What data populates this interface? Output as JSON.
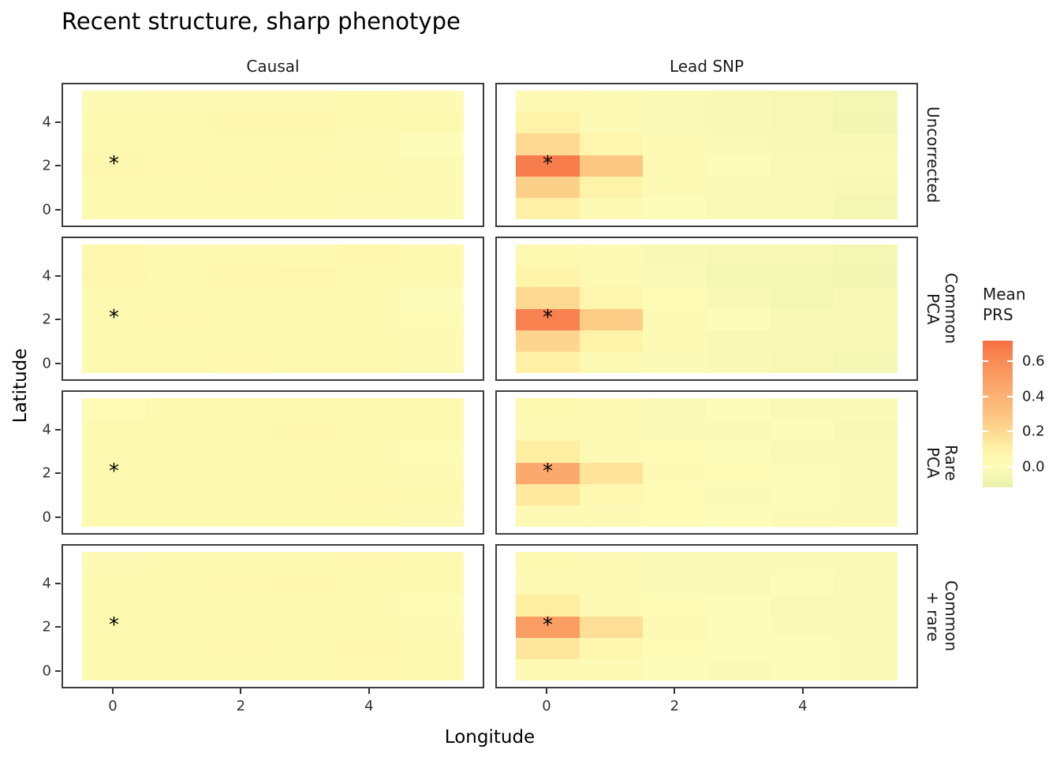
{
  "chart_data": {
    "type": "heatmap",
    "title": "Recent structure, sharp phenotype",
    "xlabel": "Longitude",
    "ylabel": "Latitude",
    "x_ticks": [
      0,
      2,
      4
    ],
    "y_ticks": [
      0,
      2,
      4
    ],
    "x_cells": [
      0,
      1,
      2,
      3,
      4,
      5
    ],
    "y_cells_top_to_bottom": [
      5,
      4,
      3,
      2,
      1,
      0
    ],
    "facet_cols": [
      "Causal",
      "Lead SNP"
    ],
    "facet_rows": [
      {
        "label": "Uncorrected",
        "lines": [
          "Uncorrected"
        ]
      },
      {
        "label": "Common PCA",
        "lines": [
          "Common",
          "PCA"
        ]
      },
      {
        "label": "Rare PCA",
        "lines": [
          "Rare",
          "PCA"
        ]
      },
      {
        "label": "Common + rare",
        "lines": [
          "Common",
          "+ rare"
        ]
      }
    ],
    "legend": {
      "title_lines": [
        "Mean",
        "PRS"
      ],
      "ticks": [
        0.6,
        0.4,
        0.2,
        0.0
      ],
      "domain": [
        -0.116,
        0.716
      ],
      "position": "right"
    },
    "palette_stops": [
      [
        -0.116,
        "#E9F0AC"
      ],
      [
        0.0,
        "#FDFCB8"
      ],
      [
        0.06,
        "#FEF7AE"
      ],
      [
        0.12,
        "#FEEEA2"
      ],
      [
        0.2,
        "#FDD992"
      ],
      [
        0.3,
        "#FCC37F"
      ],
      [
        0.4,
        "#FCB275"
      ],
      [
        0.5,
        "#FA9F64"
      ],
      [
        0.6,
        "#F98B57"
      ],
      [
        0.716,
        "#F76F42"
      ]
    ],
    "star_marker": {
      "symbol": "*",
      "lon": 0,
      "lat": 2,
      "in_every_panel": true
    },
    "grid": false,
    "panels": [
      {
        "facet_row": "Uncorrected",
        "facet_col": "Causal",
        "values_top_to_bottom": [
          [
            0.02,
            0.03,
            0.03,
            0.03,
            0.04,
            0.03
          ],
          [
            0.04,
            0.04,
            0.06,
            0.06,
            0.04,
            0.04
          ],
          [
            0.04,
            0.04,
            0.04,
            0.04,
            0.03,
            0.0
          ],
          [
            0.06,
            0.05,
            0.04,
            0.05,
            0.04,
            0.02
          ],
          [
            0.04,
            0.04,
            0.05,
            0.04,
            0.04,
            0.03
          ],
          [
            0.04,
            0.04,
            0.04,
            0.04,
            0.03,
            0.02
          ]
        ]
      },
      {
        "facet_row": "Uncorrected",
        "facet_col": "Lead SNP",
        "values_top_to_bottom": [
          [
            0.03,
            0.02,
            -0.02,
            -0.03,
            -0.04,
            -0.05
          ],
          [
            0.09,
            0.02,
            -0.02,
            -0.03,
            -0.04,
            -0.06
          ],
          [
            0.2,
            0.07,
            0.02,
            -0.02,
            -0.03,
            -0.03
          ],
          [
            0.66,
            0.28,
            0.03,
            0.0,
            -0.02,
            -0.02
          ],
          [
            0.24,
            0.09,
            0.02,
            -0.02,
            -0.02,
            -0.04
          ],
          [
            0.1,
            0.03,
            0.0,
            -0.02,
            -0.02,
            -0.05
          ]
        ]
      },
      {
        "facet_row": "Common PCA",
        "facet_col": "Causal",
        "values_top_to_bottom": [
          [
            0.06,
            0.04,
            0.04,
            0.04,
            0.06,
            0.04
          ],
          [
            0.07,
            0.04,
            0.06,
            0.07,
            0.04,
            0.04
          ],
          [
            0.04,
            0.04,
            0.04,
            0.04,
            0.04,
            0.0
          ],
          [
            0.04,
            0.05,
            0.04,
            0.04,
            0.04,
            0.01
          ],
          [
            0.04,
            0.04,
            0.04,
            0.04,
            0.04,
            0.03
          ],
          [
            0.04,
            0.04,
            0.05,
            0.04,
            0.04,
            0.03
          ]
        ]
      },
      {
        "facet_row": "Common PCA",
        "facet_col": "Lead SNP",
        "values_top_to_bottom": [
          [
            0.04,
            0.02,
            -0.03,
            -0.04,
            -0.04,
            -0.05
          ],
          [
            0.08,
            0.03,
            -0.02,
            -0.05,
            -0.05,
            -0.06
          ],
          [
            0.2,
            0.07,
            0.01,
            -0.03,
            -0.05,
            -0.04
          ],
          [
            0.64,
            0.26,
            0.02,
            0.0,
            -0.03,
            -0.03
          ],
          [
            0.22,
            0.09,
            0.02,
            -0.03,
            -0.03,
            -0.04
          ],
          [
            0.1,
            0.03,
            -0.01,
            -0.03,
            -0.04,
            -0.05
          ]
        ]
      },
      {
        "facet_row": "Rare PCA",
        "facet_col": "Causal",
        "values_top_to_bottom": [
          [
            0.01,
            0.04,
            0.04,
            0.04,
            0.04,
            0.04
          ],
          [
            0.04,
            0.04,
            0.04,
            0.06,
            0.04,
            0.04
          ],
          [
            0.04,
            0.04,
            0.04,
            0.04,
            0.04,
            0.01
          ],
          [
            0.04,
            0.04,
            0.04,
            0.04,
            0.04,
            0.03
          ],
          [
            0.04,
            0.04,
            0.04,
            0.04,
            0.05,
            0.04
          ],
          [
            0.04,
            0.04,
            0.04,
            0.04,
            0.04,
            0.03
          ]
        ]
      },
      {
        "facet_row": "Rare PCA",
        "facet_col": "Lead SNP",
        "values_top_to_bottom": [
          [
            0.04,
            0.02,
            -0.02,
            0.0,
            -0.02,
            -0.01
          ],
          [
            0.03,
            0.02,
            -0.01,
            -0.01,
            0.0,
            -0.03
          ],
          [
            0.12,
            0.03,
            0.01,
            0.0,
            -0.02,
            -0.02
          ],
          [
            0.45,
            0.16,
            0.02,
            0.01,
            0.0,
            -0.01
          ],
          [
            0.14,
            0.05,
            0.01,
            -0.01,
            0.0,
            -0.01
          ],
          [
            0.03,
            0.02,
            0.01,
            0.0,
            -0.01,
            -0.02
          ]
        ]
      },
      {
        "facet_row": "Common + rare",
        "facet_col": "Causal",
        "values_top_to_bottom": [
          [
            0.02,
            0.04,
            0.04,
            0.04,
            0.05,
            0.04
          ],
          [
            0.04,
            0.04,
            0.05,
            0.06,
            0.04,
            0.04
          ],
          [
            0.04,
            0.04,
            0.04,
            0.04,
            0.04,
            0.01
          ],
          [
            0.04,
            0.04,
            0.04,
            0.04,
            0.04,
            0.03
          ],
          [
            0.04,
            0.04,
            0.05,
            0.04,
            0.06,
            0.04
          ],
          [
            0.04,
            0.04,
            0.04,
            0.04,
            0.05,
            0.04
          ]
        ]
      },
      {
        "facet_row": "Common + rare",
        "facet_col": "Lead SNP",
        "values_top_to_bottom": [
          [
            0.04,
            0.02,
            -0.02,
            -0.01,
            -0.01,
            -0.02
          ],
          [
            0.03,
            0.02,
            -0.01,
            -0.02,
            0.0,
            -0.02
          ],
          [
            0.12,
            0.03,
            0.01,
            0.0,
            -0.02,
            -0.02
          ],
          [
            0.51,
            0.18,
            0.02,
            0.0,
            -0.01,
            -0.01
          ],
          [
            0.15,
            0.06,
            0.01,
            0.0,
            0.0,
            -0.01
          ],
          [
            0.03,
            0.02,
            0.0,
            -0.01,
            0.0,
            -0.01
          ]
        ]
      }
    ],
    "style_colors": {
      "panel_border": "#3c3c3c",
      "axis_text": "#333333",
      "text": "#1a1a1a",
      "background": "#ffffff"
    }
  }
}
